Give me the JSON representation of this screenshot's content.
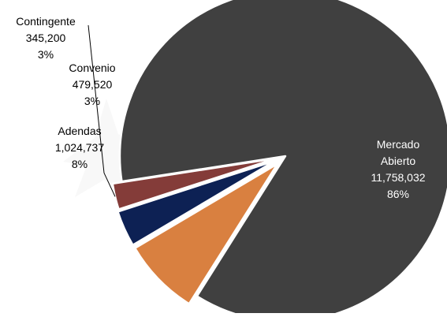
{
  "chart_data": {
    "type": "pie",
    "title": "",
    "slices": [
      {
        "label": "Mercado Abierto",
        "label_lines": [
          "Mercado",
          "Abierto"
        ],
        "value": 11758032,
        "value_text": "11,758,032",
        "percent": "86%",
        "color": "#404040"
      },
      {
        "label": "Adendas",
        "label_lines": [
          "Adendas"
        ],
        "value": 1024737,
        "value_text": "1,024,737",
        "percent": "8%",
        "color": "#D98040"
      },
      {
        "label": "Convenio",
        "label_lines": [
          "Convenio"
        ],
        "value": 479520,
        "value_text": "479,520",
        "percent": "3%",
        "color": "#0D2154"
      },
      {
        "label": "Contingente",
        "label_lines": [
          "Contingente"
        ],
        "value": 345200,
        "value_text": "345,200",
        "percent": "3%",
        "color": "#843C39"
      }
    ],
    "legend": "none",
    "data_labels": true
  }
}
